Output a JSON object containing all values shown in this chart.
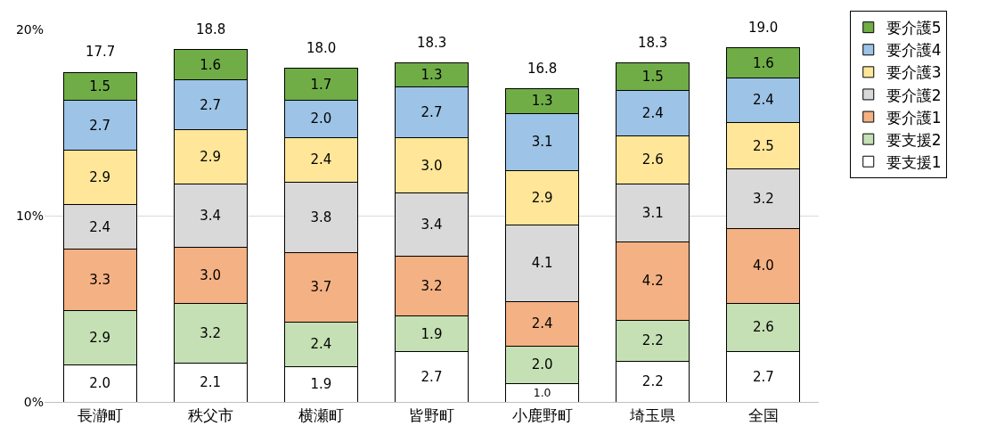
{
  "chart_data": {
    "type": "bar",
    "stacked": true,
    "grid": "y",
    "legend": "right",
    "categories": [
      "長瀞町",
      "秩父市",
      "横瀬町",
      "皆野町",
      "小鹿野町",
      "埼玉県",
      "全国"
    ],
    "ylim": [
      0,
      20
    ],
    "yticks": [
      {
        "value": 0,
        "label": "0%"
      },
      {
        "value": 10,
        "label": "10%"
      },
      {
        "value": 20,
        "label": "20%"
      }
    ],
    "totals": [
      "17.7",
      "18.8",
      "18.0",
      "18.3",
      "16.8",
      "18.3",
      "19.0"
    ],
    "series": [
      {
        "name": "要支援1",
        "color": "#ffffff",
        "values": [
          2.0,
          2.1,
          1.9,
          2.7,
          1.0,
          2.2,
          2.7
        ],
        "value_labels": [
          "2.0",
          "2.1",
          "1.9",
          "2.7",
          "1.0",
          "2.2",
          "2.7"
        ]
      },
      {
        "name": "要支援2",
        "color": "#c5e0b4",
        "values": [
          2.9,
          3.2,
          2.4,
          1.9,
          2.0,
          2.2,
          2.6
        ],
        "value_labels": [
          "2.9",
          "3.2",
          "2.4",
          "1.9",
          "2.0",
          "2.2",
          "2.6"
        ]
      },
      {
        "name": "要介護1",
        "color": "#f4b183",
        "values": [
          3.3,
          3.0,
          3.7,
          3.2,
          2.4,
          4.2,
          4.0
        ],
        "value_labels": [
          "3.3",
          "3.0",
          "3.7",
          "3.2",
          "2.4",
          "4.2",
          "4.0"
        ]
      },
      {
        "name": "要介護2",
        "color": "#d9d9d9",
        "values": [
          2.4,
          3.4,
          3.8,
          3.4,
          4.1,
          3.1,
          3.2
        ],
        "value_labels": [
          "2.4",
          "3.4",
          "3.8",
          "3.4",
          "4.1",
          "3.1",
          "3.2"
        ]
      },
      {
        "name": "要介護3",
        "color": "#ffe699",
        "values": [
          2.9,
          2.9,
          2.4,
          3.0,
          2.9,
          2.6,
          2.5
        ],
        "value_labels": [
          "2.9",
          "2.9",
          "2.4",
          "3.0",
          "2.9",
          "2.6",
          "2.5"
        ]
      },
      {
        "name": "要介護4",
        "color": "#9dc3e6",
        "values": [
          2.7,
          2.7,
          2.0,
          2.7,
          3.1,
          2.4,
          2.4
        ],
        "value_labels": [
          "2.7",
          "2.7",
          "2.0",
          "2.7",
          "3.1",
          "2.4",
          "2.4"
        ]
      },
      {
        "name": "要介護5",
        "color": "#70ad47",
        "values": [
          1.5,
          1.6,
          1.7,
          1.3,
          1.3,
          1.5,
          1.6
        ],
        "value_labels": [
          "1.5",
          "1.6",
          "1.7",
          "1.3",
          "1.3",
          "1.5",
          "1.6"
        ]
      }
    ]
  }
}
